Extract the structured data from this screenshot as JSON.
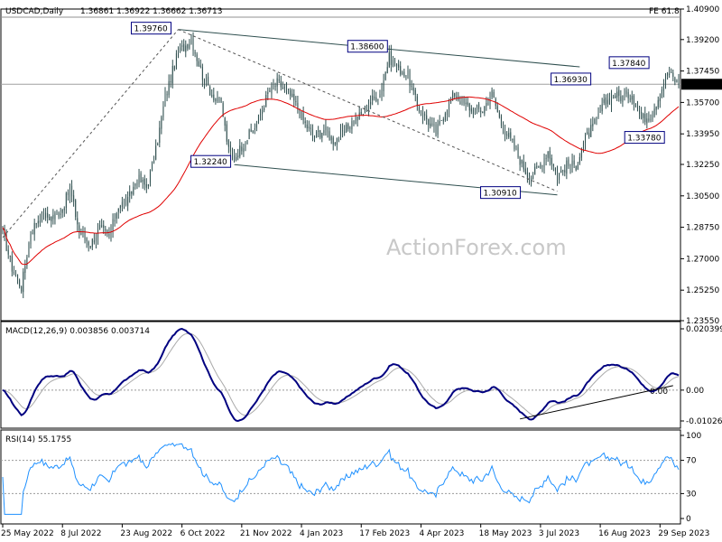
{
  "chart_data": {
    "type": "candlestick",
    "header": {
      "symbol": "USDCAD,Daily",
      "ohlc": "1.36861 1.36922 1.36662 1.36713"
    },
    "watermark": "ActionForex.com",
    "price_panel": {
      "ylim": [
        1.2355,
        1.409
      ],
      "y_ticks": [
        "1.40900",
        "1.39200",
        "1.37450",
        "1.35700",
        "1.33950",
        "1.32250",
        "1.30500",
        "1.28750",
        "1.27000",
        "1.25250",
        "1.23550"
      ],
      "current_price": 1.36713,
      "current_label": "1.36713",
      "fe_label": "FE 61.8",
      "fe_level": 1.4045,
      "moving_average": "red",
      "annotations": [
        {
          "text": "1.39760",
          "x": "2022-10-04",
          "y": 1.3976
        },
        {
          "text": "1.38600",
          "x": "2023-03-10",
          "y": 1.386
        },
        {
          "text": "1.32240",
          "x": "2022-11-15",
          "y": 1.3224
        },
        {
          "text": "1.30910",
          "x": "2023-06-26",
          "y": 1.3091
        },
        {
          "text": "1.36930",
          "x": "2023-08-07",
          "y": 1.3693
        },
        {
          "text": "1.37840",
          "x": "2023-09-26",
          "y": 1.3784
        },
        {
          "text": "1.33780",
          "x": "2023-09-07",
          "y": 1.3378
        }
      ],
      "trendlines": [
        {
          "style": "solid",
          "from": [
            "2022-10-04",
            1.3976
          ],
          "to": [
            "2023-08-01",
            1.3768
          ]
        },
        {
          "style": "solid",
          "from": [
            "2022-11-15",
            1.3224
          ],
          "to": [
            "2023-07-14",
            1.3055
          ]
        },
        {
          "style": "dashed",
          "from": [
            "2022-05-25",
            1.2818
          ],
          "to": [
            "2022-10-04",
            1.3976
          ]
        },
        {
          "style": "dashed",
          "from": [
            "2022-10-04",
            1.3976
          ],
          "to": [
            "2023-07-14",
            1.3075
          ]
        }
      ]
    },
    "macd_panel": {
      "title": "MACD(12,26,9) 0.003856 0.003714",
      "ylim": [
        -0.01026,
        0.020399
      ],
      "y_ticks": [
        "0.020399",
        "0.00",
        "-0.01026"
      ],
      "zero_label": "0.00",
      "trendline": {
        "from": [
          "2023-06-16",
          -0.0096
        ],
        "to": [
          "2023-10-10",
          0.0015
        ]
      }
    },
    "rsi_panel": {
      "title": "RSI(14) 55.1755",
      "ylim": [
        0,
        100
      ],
      "y_ticks": [
        "100",
        "70",
        "30",
        "0"
      ],
      "levels": [
        70,
        30
      ]
    },
    "x_ticks": [
      {
        "label": "25 May 2022",
        "date": "2022-05-25"
      },
      {
        "label": "8 Jul 2022",
        "date": "2022-07-08"
      },
      {
        "label": "23 Aug 2022",
        "date": "2022-08-23"
      },
      {
        "label": "6 Oct 2022",
        "date": "2022-10-06"
      },
      {
        "label": "21 Nov 2022",
        "date": "2022-11-21"
      },
      {
        "label": "4 Jan 2023",
        "date": "2023-01-04"
      },
      {
        "label": "17 Feb 2023",
        "date": "2023-02-17"
      },
      {
        "label": "4 Apr 2023",
        "date": "2023-04-04"
      },
      {
        "label": "18 May 2023",
        "date": "2023-05-18"
      },
      {
        "label": "3 Jul 2023",
        "date": "2023-07-03"
      },
      {
        "label": "16 Aug 2023",
        "date": "2023-08-16"
      },
      {
        "label": "29 Sep 2023",
        "date": "2023-09-29"
      }
    ],
    "path_points": [
      [
        "2022-05-25",
        1.285
      ],
      [
        "2022-06-01",
        1.265
      ],
      [
        "2022-06-08",
        1.254
      ],
      [
        "2022-06-15",
        1.285
      ],
      [
        "2022-06-22",
        1.294
      ],
      [
        "2022-07-01",
        1.293
      ],
      [
        "2022-07-08",
        1.298
      ],
      [
        "2022-07-14",
        1.309
      ],
      [
        "2022-07-21",
        1.285
      ],
      [
        "2022-07-29",
        1.278
      ],
      [
        "2022-08-05",
        1.287
      ],
      [
        "2022-08-12",
        1.282
      ],
      [
        "2022-08-19",
        1.3
      ],
      [
        "2022-08-26",
        1.302
      ],
      [
        "2022-09-02",
        1.315
      ],
      [
        "2022-09-09",
        1.31
      ],
      [
        "2022-09-16",
        1.33
      ],
      [
        "2022-09-23",
        1.36
      ],
      [
        "2022-09-30",
        1.378
      ],
      [
        "2022-10-04",
        1.385
      ],
      [
        "2022-10-13",
        1.392
      ],
      [
        "2022-10-21",
        1.372
      ],
      [
        "2022-10-28",
        1.362
      ],
      [
        "2022-11-04",
        1.356
      ],
      [
        "2022-11-10",
        1.33
      ],
      [
        "2022-11-15",
        1.326
      ],
      [
        "2022-11-23",
        1.336
      ],
      [
        "2022-12-01",
        1.345
      ],
      [
        "2022-12-09",
        1.362
      ],
      [
        "2022-12-16",
        1.368
      ],
      [
        "2022-12-23",
        1.364
      ],
      [
        "2022-12-30",
        1.356
      ],
      [
        "2023-01-06",
        1.345
      ],
      [
        "2023-01-13",
        1.338
      ],
      [
        "2023-01-20",
        1.342
      ],
      [
        "2023-01-27",
        1.336
      ],
      [
        "2023-02-03",
        1.339
      ],
      [
        "2023-02-10",
        1.346
      ],
      [
        "2023-02-17",
        1.35
      ],
      [
        "2023-02-24",
        1.358
      ],
      [
        "2023-03-03",
        1.362
      ],
      [
        "2023-03-10",
        1.382
      ],
      [
        "2023-03-17",
        1.376
      ],
      [
        "2023-03-24",
        1.372
      ],
      [
        "2023-03-31",
        1.355
      ],
      [
        "2023-04-07",
        1.348
      ],
      [
        "2023-04-14",
        1.34
      ],
      [
        "2023-04-21",
        1.353
      ],
      [
        "2023-04-28",
        1.362
      ],
      [
        "2023-05-05",
        1.356
      ],
      [
        "2023-05-12",
        1.353
      ],
      [
        "2023-05-19",
        1.353
      ],
      [
        "2023-05-26",
        1.362
      ],
      [
        "2023-06-02",
        1.345
      ],
      [
        "2023-06-09",
        1.336
      ],
      [
        "2023-06-16",
        1.325
      ],
      [
        "2023-06-23",
        1.315
      ],
      [
        "2023-06-30",
        1.321
      ],
      [
        "2023-07-07",
        1.33
      ],
      [
        "2023-07-14",
        1.316
      ],
      [
        "2023-07-21",
        1.322
      ],
      [
        "2023-07-28",
        1.322
      ],
      [
        "2023-08-04",
        1.337
      ],
      [
        "2023-08-11",
        1.345
      ],
      [
        "2023-08-18",
        1.356
      ],
      [
        "2023-08-25",
        1.361
      ],
      [
        "2023-09-01",
        1.36
      ],
      [
        "2023-09-08",
        1.362
      ],
      [
        "2023-09-15",
        1.348
      ],
      [
        "2023-09-22",
        1.35
      ],
      [
        "2023-09-29",
        1.362
      ],
      [
        "2023-10-05",
        1.374
      ],
      [
        "2023-10-13",
        1.3671
      ]
    ]
  }
}
